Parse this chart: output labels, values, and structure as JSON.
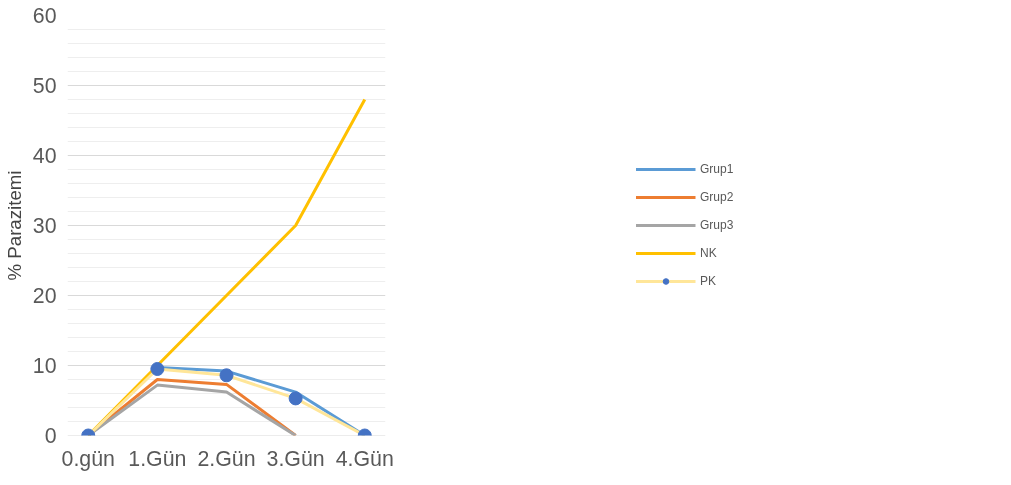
{
  "chart_data": {
    "type": "line",
    "ylabel": "% Parazitemi",
    "categories": [
      "0.gün",
      "1.Gün",
      "2.Gün",
      "3.Gün",
      "4.Gün"
    ],
    "series": [
      {
        "name": "Grup1",
        "color": "#5b9bd5",
        "values": [
          0,
          9.7,
          9.2,
          6.2,
          0
        ]
      },
      {
        "name": "Grup2",
        "color": "#ed7d31",
        "values": [
          0,
          8.0,
          7.3,
          0,
          null
        ]
      },
      {
        "name": "Grup3",
        "color": "#a5a5a5",
        "values": [
          0,
          7.2,
          6.2,
          0,
          null
        ]
      },
      {
        "name": "NK",
        "color": "#ffc000",
        "values": [
          0,
          10,
          20,
          30,
          48
        ]
      },
      {
        "name": "PK",
        "color": "#ffe699",
        "marker": "circle",
        "colors": [
          "#4472c4",
          "#4472c4",
          "#4472c4",
          "#4472c4",
          "#4472c4"
        ],
        "values": [
          0,
          9.5,
          8.6,
          5.3,
          0
        ]
      }
    ],
    "ylim": [
      0,
      60
    ],
    "yticks": [
      0,
      10,
      20,
      30,
      40,
      50,
      60
    ],
    "grid": "y",
    "legend": "right"
  }
}
